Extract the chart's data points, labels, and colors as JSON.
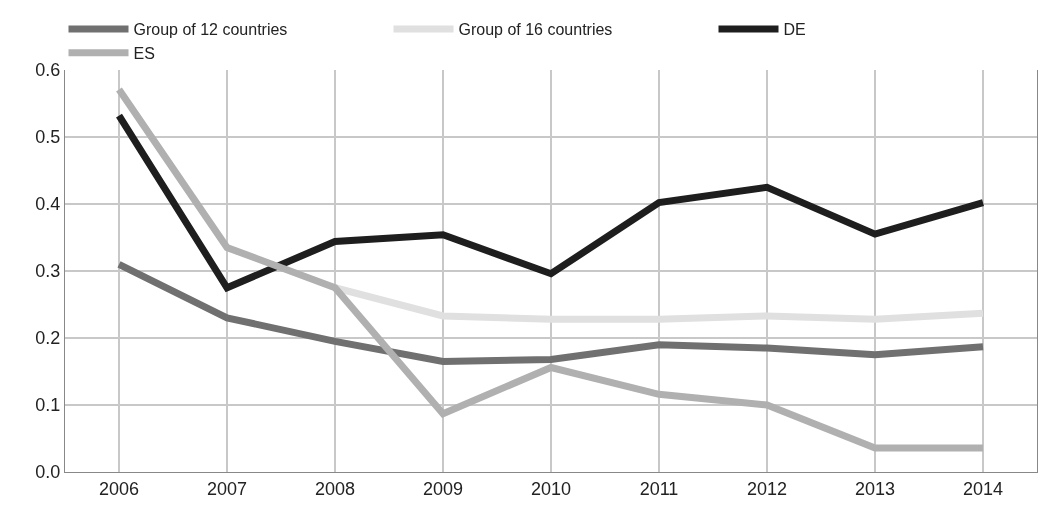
{
  "chart_data": {
    "type": "line",
    "categories": [
      "2006",
      "2007",
      "2008",
      "2009",
      "2010",
      "2011",
      "2012",
      "2013",
      "2014"
    ],
    "series": [
      {
        "name": "Group of 12 countries",
        "color": "#707070",
        "values": [
          0.31,
          0.23,
          0.195,
          0.165,
          0.168,
          0.19,
          0.185,
          0.175,
          0.187
        ]
      },
      {
        "name": "Group of 16 countries",
        "color": "#e0e0e0",
        "values": [
          null,
          null,
          0.275,
          0.233,
          0.228,
          0.228,
          0.233,
          0.228,
          0.237
        ]
      },
      {
        "name": "DE",
        "color": "#1e1e1e",
        "values": [
          0.532,
          0.275,
          0.344,
          0.354,
          0.296,
          0.402,
          0.425,
          0.355,
          0.402
        ]
      },
      {
        "name": "ES",
        "color": "#b0b0b0",
        "values": [
          0.571,
          0.335,
          0.275,
          0.087,
          0.156,
          0.116,
          0.1,
          0.036,
          0.036
        ]
      }
    ],
    "ylim": [
      0,
      0.6
    ],
    "yticks": [
      {
        "value": 0,
        "label": "0.0"
      },
      {
        "value": 0.1,
        "label": "0.1"
      },
      {
        "value": 0.2,
        "label": "0.2"
      },
      {
        "value": 0.3,
        "label": "0.3"
      },
      {
        "value": 0.4,
        "label": "0.4"
      },
      {
        "value": 0.5,
        "label": "0.5"
      },
      {
        "value": 0.6,
        "label": "0.6"
      }
    ],
    "grid": true,
    "legend": "top",
    "marker": "none",
    "line_style": "solid"
  }
}
